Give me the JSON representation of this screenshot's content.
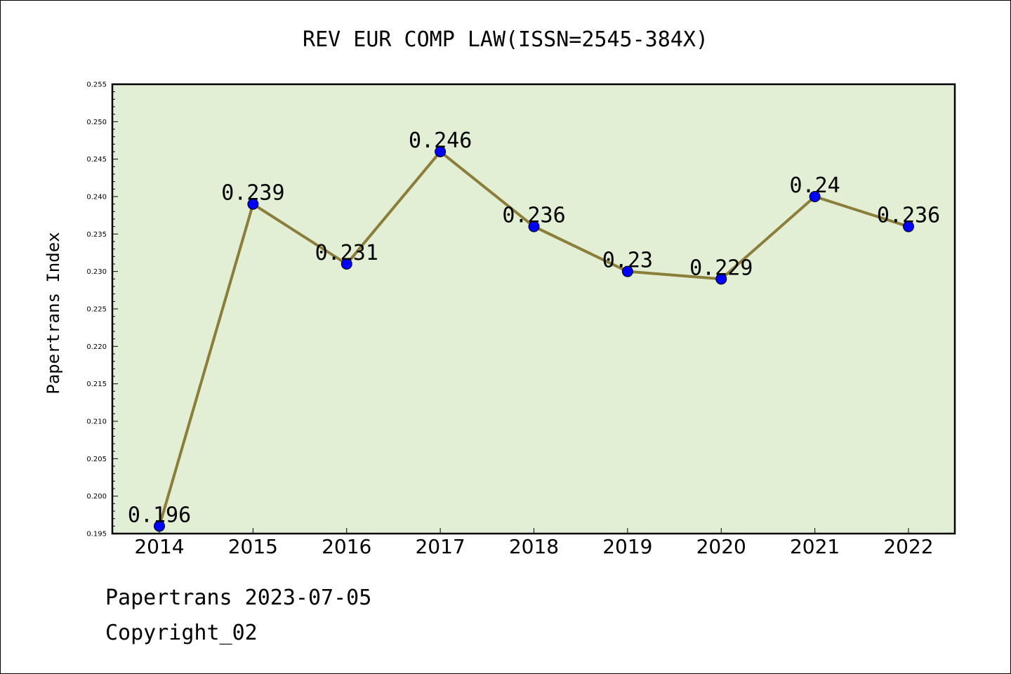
{
  "chart_data": {
    "type": "line",
    "title": "REV EUR COMP LAW(ISSN=2545-384X)",
    "xlabel": "",
    "ylabel": "Papertrans Index",
    "categories": [
      "2014",
      "2015",
      "2016",
      "2017",
      "2018",
      "2019",
      "2020",
      "2021",
      "2022"
    ],
    "series": [
      {
        "values": [
          0.196,
          0.239,
          0.231,
          0.246,
          0.236,
          0.23,
          0.229,
          0.24,
          0.236
        ],
        "data_labels": [
          "0.196",
          "0.239",
          "0.231",
          "0.246",
          "0.236",
          "0.23",
          "0.229",
          "0.24",
          "0.236"
        ]
      }
    ],
    "ylim": [
      0.195,
      0.255
    ],
    "yticks": [
      "0.195",
      "0.200",
      "0.205",
      "0.210",
      "0.215",
      "0.220",
      "0.225",
      "0.230",
      "0.235",
      "0.240",
      "0.245",
      "0.250",
      "0.255"
    ],
    "grid": false,
    "legend": "none",
    "colors": {
      "plot_background": "#e2efd4",
      "line": "#8b7d3a",
      "marker": "#0000ff"
    }
  },
  "footer": {
    "date_line": "Papertrans 2023-07-05",
    "copyright": "Copyright_02"
  }
}
